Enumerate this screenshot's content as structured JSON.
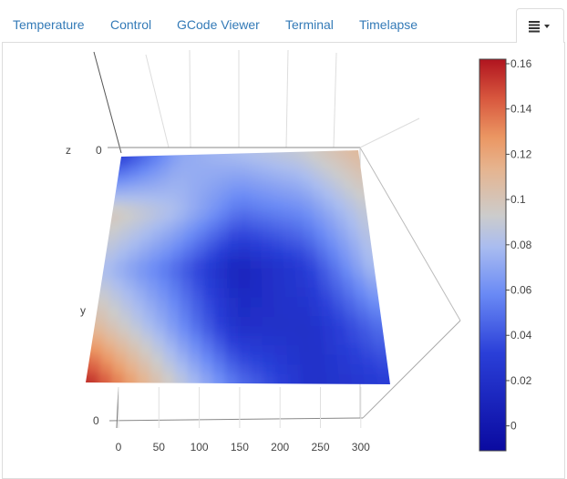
{
  "tabs": [
    {
      "label": "Temperature"
    },
    {
      "label": "Control"
    },
    {
      "label": "GCode Viewer"
    },
    {
      "label": "Terminal"
    },
    {
      "label": "Timelapse"
    }
  ],
  "menu_tab": {
    "icon": "list-icon",
    "caret": "caret-down-icon"
  },
  "chart_data": {
    "type": "surface",
    "axis_labels": {
      "z": "z",
      "y": "y"
    },
    "x_ticks": [
      "0",
      "50",
      "100",
      "150",
      "200",
      "250",
      "300"
    ],
    "y_tick": "0",
    "z_tick": "0",
    "x": [
      0,
      75,
      150,
      225,
      300
    ],
    "y": [
      0,
      75,
      150,
      225,
      300
    ],
    "z": [
      [
        0.16,
        0.1,
        0.05,
        0.02,
        0.03
      ],
      [
        0.11,
        0.07,
        0.02,
        0.02,
        0.05
      ],
      [
        0.08,
        0.05,
        0.01,
        0.03,
        0.08
      ],
      [
        0.1,
        0.08,
        0.05,
        0.06,
        0.09
      ],
      [
        0.03,
        0.07,
        0.08,
        0.09,
        0.11
      ]
    ],
    "colorbar": {
      "range": [
        -0.011,
        0.162
      ],
      "ticks": [
        "0",
        "0.02",
        "0.04",
        "0.06",
        "0.08",
        "0.1",
        "0.12",
        "0.14",
        "0.16"
      ],
      "tick_values": [
        0,
        0.02,
        0.04,
        0.06,
        0.08,
        0.1,
        0.12,
        0.14,
        0.16
      ],
      "colorscale": [
        [
          0.0,
          "#0a0aa0"
        ],
        [
          0.25,
          "#2a3fd8"
        ],
        [
          0.4,
          "#6a8af5"
        ],
        [
          0.52,
          "#a9bcf0"
        ],
        [
          0.6,
          "#cccccc"
        ],
        [
          0.72,
          "#e6b48f"
        ],
        [
          0.8,
          "#eb9763"
        ],
        [
          0.9,
          "#d8573e"
        ],
        [
          1.0,
          "#b0141f"
        ]
      ]
    }
  }
}
